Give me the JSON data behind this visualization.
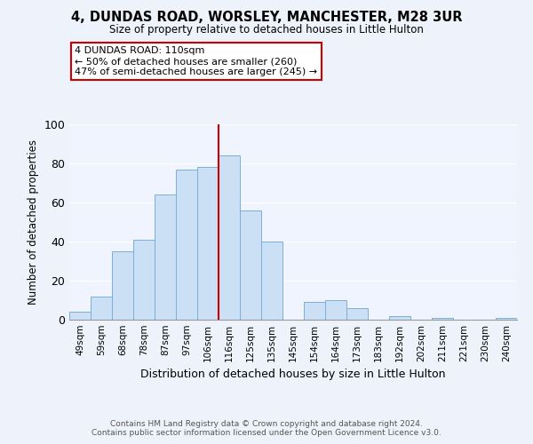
{
  "title": "4, DUNDAS ROAD, WORSLEY, MANCHESTER, M28 3UR",
  "subtitle": "Size of property relative to detached houses in Little Hulton",
  "xlabel": "Distribution of detached houses by size in Little Hulton",
  "ylabel": "Number of detached properties",
  "bar_labels": [
    "49sqm",
    "59sqm",
    "68sqm",
    "78sqm",
    "87sqm",
    "97sqm",
    "106sqm",
    "116sqm",
    "125sqm",
    "135sqm",
    "145sqm",
    "154sqm",
    "164sqm",
    "173sqm",
    "183sqm",
    "192sqm",
    "202sqm",
    "211sqm",
    "221sqm",
    "230sqm",
    "240sqm"
  ],
  "bar_values": [
    4,
    12,
    35,
    41,
    64,
    77,
    78,
    84,
    56,
    40,
    0,
    9,
    10,
    6,
    0,
    2,
    0,
    1,
    0,
    0,
    1
  ],
  "bar_color": "#cce0f5",
  "bar_edgecolor": "#7aafd6",
  "vline_x": 6.5,
  "vline_color": "#cc0000",
  "ylim": [
    0,
    100
  ],
  "yticks": [
    0,
    20,
    40,
    60,
    80,
    100
  ],
  "annotation_title": "4 DUNDAS ROAD: 110sqm",
  "annotation_line1": "← 50% of detached houses are smaller (260)",
  "annotation_line2": "47% of semi-detached houses are larger (245) →",
  "annotation_box_facecolor": "#ffffff",
  "annotation_box_edgecolor": "#cc0000",
  "footer1": "Contains HM Land Registry data © Crown copyright and database right 2024.",
  "footer2": "Contains public sector information licensed under the Open Government Licence v3.0.",
  "background_color": "#eef2fa",
  "plot_background_color": "#f0f4ff"
}
